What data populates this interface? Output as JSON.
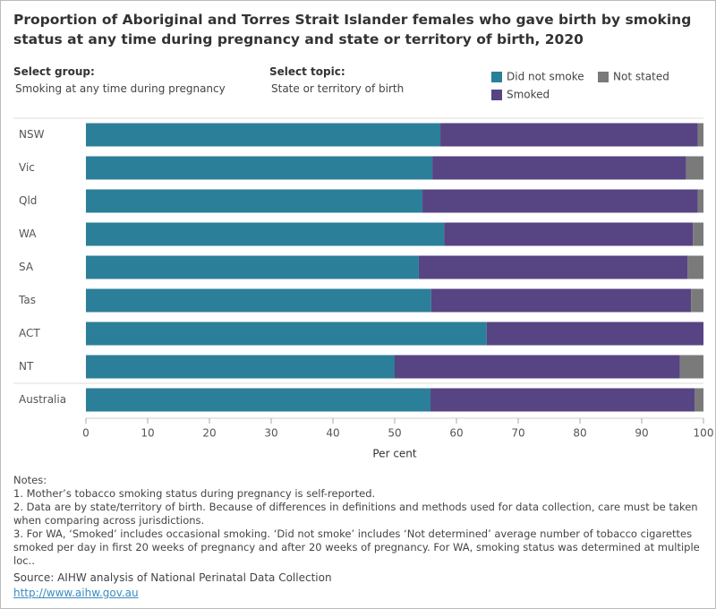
{
  "chart_data": {
    "type": "stacked-bar-horizontal",
    "title": "Proportion of Aboriginal and Torres Strait Islander females who gave birth by smoking status at any time during pregnancy and state or territory of birth, 2020",
    "controls": [
      {
        "label": "Select group:",
        "value": "Smoking at any time during pregnancy"
      },
      {
        "label": "Select topic:",
        "value": "State or territory of birth"
      }
    ],
    "categories": [
      "NSW",
      "Vic",
      "Qld",
      "WA",
      "SA",
      "Tas",
      "ACT",
      "NT",
      "Australia"
    ],
    "series": [
      {
        "name": "Did not smoke",
        "color": "#2b7f98",
        "values": [
          57.4,
          56.1,
          54.5,
          58.0,
          53.9,
          55.9,
          64.9,
          50.0,
          55.8
        ]
      },
      {
        "name": "Smoked",
        "color": "#574482",
        "values": [
          41.7,
          41.1,
          44.6,
          40.3,
          43.5,
          42.1,
          35.1,
          46.2,
          42.8
        ]
      },
      {
        "name": "Not stated",
        "color": "#7a7a7a",
        "values": [
          0.9,
          2.8,
          0.9,
          1.7,
          2.6,
          2.0,
          0,
          3.8,
          1.4
        ]
      }
    ],
    "x_label": "Per cent",
    "xlim": [
      0,
      100
    ],
    "xticks": [
      0,
      10,
      20,
      30,
      40,
      50,
      60,
      70,
      80,
      90,
      100
    ],
    "notes_title": "Notes:",
    "notes": [
      "1. Mother’s tobacco smoking status during pregnancy is self-reported.",
      "2. Data are by state/territory of birth. Because of differences in definitions and methods used for data collection, care must be taken when comparing across jurisdictions.",
      "3. For WA, ‘Smoked’ includes occasional smoking. ‘Did not smoke’ includes ‘Not determined’ average number of tobacco cigarettes smoked per day in first 20 weeks of pregnancy and after 20 weeks of pregnancy. For WA, smoking status was determined at multiple loc.."
    ],
    "source": "Source: AIHW analysis of National Perinatal Data Collection",
    "link": "http://www.aihw.gov.au"
  }
}
